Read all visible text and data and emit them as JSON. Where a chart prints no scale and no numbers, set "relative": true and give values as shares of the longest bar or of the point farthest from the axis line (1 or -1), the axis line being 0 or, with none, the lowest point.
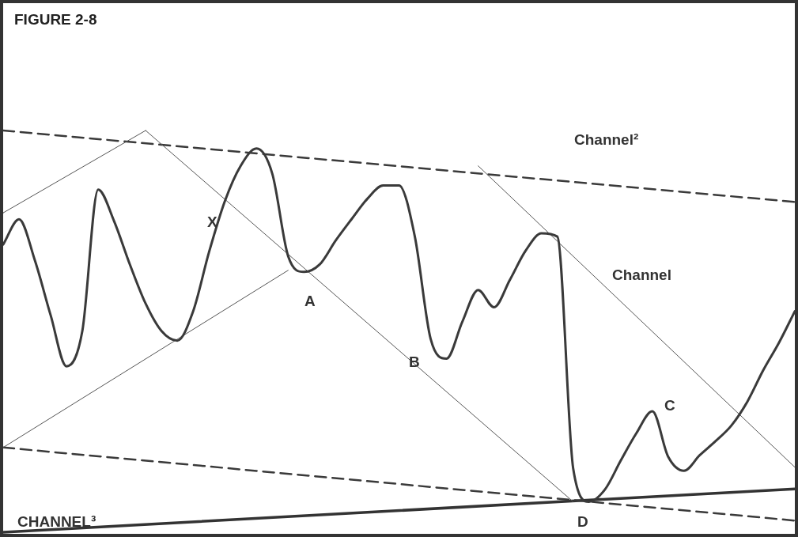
{
  "chart_data": {
    "type": "line",
    "title": "FIGURE 2-8",
    "relative": true,
    "grid": false,
    "legend": false,
    "marker": "none",
    "categories": [
      null,
      null,
      null,
      null,
      null,
      null,
      null,
      null,
      null,
      null,
      null,
      null,
      null,
      null,
      null,
      null,
      null,
      null,
      null,
      null,
      null,
      null,
      null,
      null,
      null,
      null,
      null,
      null,
      null,
      null,
      null,
      null,
      null,
      null,
      null,
      null,
      null,
      null,
      null,
      null,
      null,
      null,
      null,
      null,
      null,
      null,
      null,
      null,
      null,
      null,
      null
    ],
    "annotations": [
      "Channel²",
      "Channel",
      "X",
      "A",
      "B",
      "C",
      "D",
      "CHANNEL³"
    ],
    "series": [
      {
        "color": "#3a3a3a",
        "line_style": "solid",
        "values": [
          0.716,
          0.779,
          0.677,
          0.54,
          0.413,
          0.501,
          0.853,
          0.775,
          0.667,
          0.569,
          0.501,
          0.477,
          0.55,
          0.697,
          0.824,
          0.912,
          0.955,
          0.892,
          0.687,
          0.648,
          0.667,
          0.726,
          0.779,
          0.83,
          0.863,
          0.863,
          0.736,
          0.481,
          0.432,
          0.524,
          0.603,
          0.56,
          0.628,
          0.701,
          0.744,
          0.736,
          0.159,
          0.076,
          0.106,
          0.178,
          0.247,
          0.301,
          0.188,
          0.153,
          0.192,
          0.227,
          0.266,
          0.325,
          0.403,
          0.472,
          0.55
        ]
      },
      {
        "color": "#555555",
        "line_style": "solid",
        "values": [
          0.795,
          null,
          null,
          null,
          null,
          null,
          null,
          null,
          null,
          1.0,
          null,
          null,
          null,
          null,
          null,
          null,
          null,
          null,
          null,
          null,
          null,
          null,
          null,
          null,
          null,
          null,
          null,
          null,
          null,
          null,
          null,
          null,
          null,
          null,
          null,
          null,
          null,
          null,
          null,
          null,
          null,
          null,
          null,
          null,
          null,
          null,
          null,
          null,
          null,
          null,
          null
        ]
      },
      {
        "color": "#555555",
        "line_style": "solid",
        "values": [
          null,
          null,
          null,
          null,
          null,
          null,
          null,
          null,
          null,
          1.0,
          null,
          null,
          null,
          null,
          null,
          null,
          null,
          null,
          null,
          null,
          null,
          null,
          null,
          null,
          null,
          null,
          null,
          null,
          null,
          null,
          null,
          null,
          null,
          null,
          null,
          null,
          0.076,
          null,
          null,
          null,
          null,
          null,
          null,
          null,
          null,
          null,
          null,
          null,
          null,
          null,
          null
        ]
      },
      {
        "color": "#555555",
        "line_style": "solid",
        "values": [
          null,
          null,
          null,
          null,
          null,
          null,
          null,
          null,
          null,
          null,
          null,
          null,
          null,
          null,
          null,
          null,
          null,
          null,
          null,
          null,
          null,
          null,
          null,
          null,
          null,
          null,
          null,
          null,
          null,
          null,
          0.912,
          null,
          null,
          null,
          null,
          null,
          null,
          null,
          null,
          null,
          null,
          null,
          null,
          null,
          null,
          null,
          null,
          null,
          null,
          null,
          0.162
        ]
      },
      {
        "color": "#555555",
        "line_style": "solid",
        "values": [
          0.211,
          null,
          null,
          null,
          null,
          null,
          null,
          null,
          null,
          null,
          null,
          null,
          null,
          null,
          null,
          null,
          null,
          null,
          0.652,
          null,
          null,
          null,
          null,
          null,
          null,
          null,
          null,
          null,
          null,
          null,
          null,
          null,
          null,
          null,
          null,
          null,
          null,
          null,
          null,
          null,
          null,
          null,
          null,
          null,
          null,
          null,
          null,
          null,
          null,
          null,
          null
        ]
      },
      {
        "color": "#3a3a3a",
        "line_style": "dashed",
        "values": [
          1.0,
          null,
          null,
          null,
          null,
          null,
          null,
          null,
          null,
          null,
          null,
          null,
          null,
          null,
          null,
          null,
          null,
          null,
          null,
          null,
          null,
          null,
          null,
          null,
          null,
          null,
          null,
          null,
          null,
          null,
          null,
          null,
          null,
          null,
          null,
          null,
          null,
          null,
          null,
          null,
          null,
          null,
          null,
          null,
          null,
          null,
          null,
          null,
          null,
          null,
          0.822
        ]
      },
      {
        "color": "#3a3a3a",
        "line_style": "dashed",
        "values": [
          0.211,
          null,
          null,
          null,
          null,
          null,
          null,
          null,
          null,
          null,
          null,
          null,
          null,
          null,
          null,
          null,
          null,
          null,
          null,
          null,
          null,
          null,
          null,
          null,
          null,
          null,
          null,
          null,
          null,
          null,
          null,
          null,
          null,
          null,
          null,
          null,
          null,
          null,
          null,
          null,
          null,
          null,
          null,
          null,
          null,
          null,
          null,
          null,
          null,
          null,
          0.029
        ]
      },
      {
        "color": "#333333",
        "line_style": "solid",
        "values": [
          0.0,
          null,
          null,
          null,
          null,
          null,
          null,
          null,
          null,
          null,
          null,
          null,
          null,
          null,
          null,
          null,
          null,
          null,
          null,
          null,
          null,
          null,
          null,
          null,
          null,
          null,
          null,
          null,
          null,
          null,
          null,
          null,
          null,
          null,
          null,
          null,
          null,
          null,
          null,
          null,
          null,
          null,
          null,
          null,
          null,
          null,
          null,
          null,
          null,
          null,
          0.108
        ]
      }
    ]
  }
}
